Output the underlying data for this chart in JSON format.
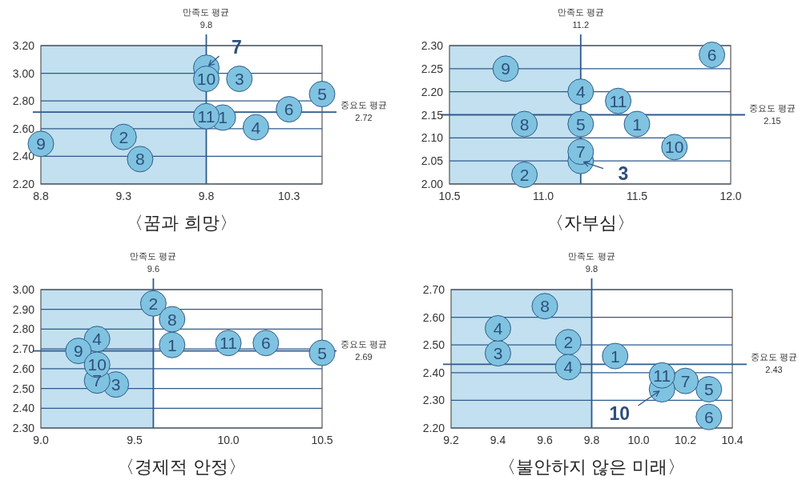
{
  "chart_data": [
    {
      "type": "scatter",
      "title": "〈꿈과 희망〉",
      "marker": "circle",
      "grid": "y",
      "xlim": [
        8.8,
        10.5
      ],
      "xticks": [
        8.8,
        9.3,
        9.8,
        10.3
      ],
      "ylim": [
        2.2,
        3.2
      ],
      "yticks": [
        {
          "value": 2.2,
          "label": "2.20"
        },
        {
          "value": 2.4,
          "label": "2.40"
        },
        {
          "value": 2.6,
          "label": "2.60"
        },
        {
          "value": 2.8,
          "label": "2.80"
        },
        {
          "value": 3.0,
          "label": "3.00"
        },
        {
          "value": 3.2,
          "label": "3.20"
        }
      ],
      "bands": [
        {
          "axis": "x",
          "from": 8.8,
          "to": 9.8,
          "color": "#c2e0ef"
        }
      ],
      "ref_lines": [
        {
          "axis": "x",
          "value": 9.8,
          "label": "만족도 평균\n9.8"
        },
        {
          "axis": "y",
          "value": 2.72,
          "label": "중요도 평균\n2.72"
        }
      ],
      "series": [
        {
          "name": "1",
          "color": "#7fc3e0",
          "x": [
            9.9
          ],
          "values": [
            2.68
          ]
        },
        {
          "name": "2",
          "color": "#7fc3e0",
          "x": [
            9.3
          ],
          "values": [
            2.54
          ]
        },
        {
          "name": "3",
          "color": "#7fc3e0",
          "x": [
            10.0
          ],
          "values": [
            2.96
          ]
        },
        {
          "name": "4",
          "color": "#7fc3e0",
          "x": [
            10.1
          ],
          "values": [
            2.61
          ]
        },
        {
          "name": "5",
          "color": "#7fc3e0",
          "x": [
            10.5
          ],
          "values": [
            2.85
          ]
        },
        {
          "name": "6",
          "color": "#7fc3e0",
          "x": [
            10.3
          ],
          "values": [
            2.74
          ]
        },
        {
          "name": "7",
          "color": "#7fc3e0",
          "x": [
            9.8
          ],
          "values": [
            3.04
          ]
        },
        {
          "name": "8",
          "color": "#7fc3e0",
          "x": [
            9.4
          ],
          "values": [
            2.38
          ]
        },
        {
          "name": "9",
          "color": "#7fc3e0",
          "x": [
            8.8
          ],
          "values": [
            2.49
          ]
        },
        {
          "name": "10",
          "color": "#7fc3e0",
          "x": [
            9.8
          ],
          "values": [
            2.96
          ]
        },
        {
          "name": "11",
          "color": "#7fc3e0",
          "x": [
            9.8
          ],
          "values": [
            2.69
          ]
        }
      ]
    },
    {
      "type": "scatter",
      "title": "〈자부심〉",
      "marker": "circle",
      "grid": "y",
      "xlim": [
        10.5,
        12.0
      ],
      "xticks": [
        {
          "value": 10.5,
          "label": "10.5"
        },
        {
          "value": 11.0,
          "label": "11.0"
        },
        {
          "value": 11.5,
          "label": "11.5"
        },
        {
          "value": 12.0,
          "label": "12.0"
        }
      ],
      "ylim": [
        2.0,
        2.3
      ],
      "yticks": [
        {
          "value": 2.0,
          "label": "2.00"
        },
        {
          "value": 2.05,
          "label": "2.05"
        },
        {
          "value": 2.1,
          "label": "2.10"
        },
        {
          "value": 2.15,
          "label": "2.15"
        },
        {
          "value": 2.2,
          "label": "2.20"
        },
        {
          "value": 2.25,
          "label": "2.25"
        },
        {
          "value": 2.3,
          "label": "2.30"
        }
      ],
      "bands": [
        {
          "axis": "x",
          "from": 10.5,
          "to": 11.2,
          "color": "#c2e0ef"
        }
      ],
      "ref_lines": [
        {
          "axis": "x",
          "value": 11.2,
          "label": "만족도 평균\n11.2"
        },
        {
          "axis": "y",
          "value": 2.15,
          "label": "중요도 평균\n2.15"
        }
      ],
      "series": [
        {
          "name": "1",
          "color": "#7fc3e0",
          "x": [
            11.5
          ],
          "values": [
            2.13
          ]
        },
        {
          "name": "2",
          "color": "#7fc3e0",
          "x": [
            10.9
          ],
          "values": [
            2.02
          ]
        },
        {
          "name": "3",
          "color": "#7fc3e0",
          "x": [
            11.2
          ],
          "values": [
            2.05
          ]
        },
        {
          "name": "4",
          "color": "#7fc3e0",
          "x": [
            11.2
          ],
          "values": [
            2.2
          ]
        },
        {
          "name": "5",
          "color": "#7fc3e0",
          "x": [
            11.2
          ],
          "values": [
            2.13
          ]
        },
        {
          "name": "6",
          "color": "#7fc3e0",
          "x": [
            11.9
          ],
          "values": [
            2.28
          ]
        },
        {
          "name": "7",
          "color": "#7fc3e0",
          "x": [
            11.2
          ],
          "values": [
            2.07
          ]
        },
        {
          "name": "8",
          "color": "#7fc3e0",
          "x": [
            10.9
          ],
          "values": [
            2.13
          ]
        },
        {
          "name": "9",
          "color": "#7fc3e0",
          "x": [
            10.8
          ],
          "values": [
            2.25
          ]
        },
        {
          "name": "10",
          "color": "#7fc3e0",
          "x": [
            11.7
          ],
          "values": [
            2.08
          ]
        },
        {
          "name": "11",
          "color": "#7fc3e0",
          "x": [
            11.4
          ],
          "values": [
            2.18
          ]
        }
      ]
    },
    {
      "type": "scatter",
      "title": "〈경제적 안정〉",
      "marker": "circle",
      "grid": "y",
      "xlim": [
        9.0,
        10.5
      ],
      "xticks": [
        {
          "value": 9.0,
          "label": "9.0"
        },
        {
          "value": 9.5,
          "label": "9.5"
        },
        {
          "value": 10.0,
          "label": "10.0"
        },
        {
          "value": 10.5,
          "label": "10.5"
        }
      ],
      "ylim": [
        2.3,
        3.0
      ],
      "yticks": [
        {
          "value": 2.3,
          "label": "2.30"
        },
        {
          "value": 2.4,
          "label": "2.40"
        },
        {
          "value": 2.5,
          "label": "2.50"
        },
        {
          "value": 2.6,
          "label": "2.60"
        },
        {
          "value": 2.7,
          "label": "2.70"
        },
        {
          "value": 2.8,
          "label": "2.80"
        },
        {
          "value": 2.9,
          "label": "2.90"
        },
        {
          "value": 3.0,
          "label": "3.00"
        }
      ],
      "bands": [
        {
          "axis": "x",
          "from": 9.0,
          "to": 9.6,
          "color": "#c2e0ef"
        }
      ],
      "ref_lines": [
        {
          "axis": "x",
          "value": 9.6,
          "label": "만족도 평균\n9.6"
        },
        {
          "axis": "y",
          "value": 2.69,
          "label": "중요도 평균\n2.69"
        }
      ],
      "series": [
        {
          "name": "1",
          "color": "#7fc3e0",
          "x": [
            9.7
          ],
          "values": [
            2.72
          ]
        },
        {
          "name": "2",
          "color": "#7fc3e0",
          "x": [
            9.6
          ],
          "values": [
            2.93
          ]
        },
        {
          "name": "3",
          "color": "#7fc3e0",
          "x": [
            9.4
          ],
          "values": [
            2.52
          ]
        },
        {
          "name": "4",
          "color": "#7fc3e0",
          "x": [
            9.3
          ],
          "values": [
            2.75
          ]
        },
        {
          "name": "5",
          "color": "#7fc3e0",
          "x": [
            10.5
          ],
          "values": [
            2.68
          ]
        },
        {
          "name": "6",
          "color": "#7fc3e0",
          "x": [
            10.2
          ],
          "values": [
            2.73
          ]
        },
        {
          "name": "7",
          "color": "#7fc3e0",
          "x": [
            9.3
          ],
          "values": [
            2.54
          ]
        },
        {
          "name": "8",
          "color": "#7fc3e0",
          "x": [
            9.7
          ],
          "values": [
            2.85
          ]
        },
        {
          "name": "9",
          "color": "#7fc3e0",
          "x": [
            9.2
          ],
          "values": [
            2.69
          ]
        },
        {
          "name": "10",
          "color": "#7fc3e0",
          "x": [
            9.3
          ],
          "values": [
            2.62
          ]
        },
        {
          "name": "11",
          "color": "#7fc3e0",
          "x": [
            10.0
          ],
          "values": [
            2.73
          ]
        }
      ]
    },
    {
      "type": "scatter",
      "title": "〈불안하지 않은 미래〉",
      "marker": "circle",
      "grid": "y",
      "xlim": [
        9.2,
        10.4
      ],
      "xticks": [
        9.2,
        9.4,
        9.6,
        9.8,
        {
          "value": 10.0,
          "label": "10.0"
        },
        10.2,
        10.4
      ],
      "ylim": [
        2.2,
        2.7
      ],
      "yticks": [
        {
          "value": 2.2,
          "label": "2.20"
        },
        {
          "value": 2.3,
          "label": "2.30"
        },
        {
          "value": 2.4,
          "label": "2.40"
        },
        {
          "value": 2.5,
          "label": "2.50"
        },
        {
          "value": 2.6,
          "label": "2.60"
        },
        {
          "value": 2.7,
          "label": "2.70"
        }
      ],
      "bands": [
        {
          "axis": "x",
          "from": 9.2,
          "to": 9.8,
          "color": "#c2e0ef"
        }
      ],
      "ref_lines": [
        {
          "axis": "x",
          "value": 9.8,
          "label": "만족도 평균\n9.8"
        },
        {
          "axis": "y",
          "value": 2.43,
          "label": "중요도 평균\n2.43"
        }
      ],
      "series": [
        {
          "name": "1",
          "color": "#7fc3e0",
          "x": [
            9.9
          ],
          "values": [
            2.46
          ]
        },
        {
          "name": "2",
          "color": "#7fc3e0",
          "x": [
            9.7
          ],
          "values": [
            2.51
          ]
        },
        {
          "name": "3",
          "color": "#7fc3e0",
          "x": [
            9.4
          ],
          "values": [
            2.47
          ]
        },
        {
          "name": "4",
          "color": "#7fc3e0",
          "x": [
            9.4
          ],
          "values": [
            2.56
          ]
        },
        {
          "name": "4",
          "color": "#7fc3e0",
          "x": [
            9.7
          ],
          "values": [
            2.42
          ]
        },
        {
          "name": "5",
          "color": "#7fc3e0",
          "x": [
            10.3
          ],
          "values": [
            2.34
          ]
        },
        {
          "name": "6",
          "color": "#7fc3e0",
          "x": [
            10.3
          ],
          "values": [
            2.24
          ]
        },
        {
          "name": "7",
          "color": "#7fc3e0",
          "x": [
            10.2
          ],
          "values": [
            2.37
          ]
        },
        {
          "name": "8",
          "color": "#7fc3e0",
          "x": [
            9.6
          ],
          "values": [
            2.64
          ]
        },
        {
          "name": "10",
          "color": "#7fc3e0",
          "x": [
            10.1
          ],
          "values": [
            2.34
          ]
        },
        {
          "name": "11",
          "color": "#7fc3e0",
          "x": [
            10.1
          ],
          "values": [
            2.39
          ]
        }
      ]
    }
  ]
}
